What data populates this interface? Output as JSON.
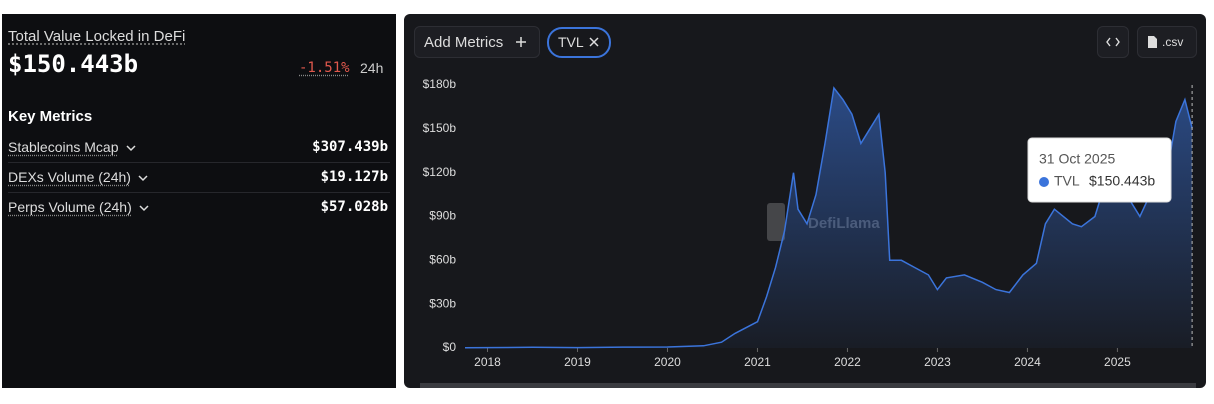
{
  "panel": {
    "title": "Total Value Locked in DeFi",
    "value": "$150.443b",
    "change": "-1.51%",
    "period": "24h",
    "section": "Key Metrics",
    "metrics": [
      {
        "label": "Stablecoins Mcap",
        "value": "$307.439b"
      },
      {
        "label": "DEXs Volume (24h)",
        "value": "$19.127b"
      },
      {
        "label": "Perps Volume (24h)",
        "value": "$57.028b"
      }
    ]
  },
  "toolbar": {
    "add": "Add Metrics",
    "csv": ".csv"
  },
  "chart_data": {
    "type": "area",
    "x": [
      2017.75,
      2018,
      2018.5,
      2019,
      2019.5,
      2020,
      2020.4,
      2020.6,
      2020.75,
      2021,
      2021.1,
      2021.2,
      2021.3,
      2021.4,
      2021.45,
      2021.55,
      2021.65,
      2021.75,
      2021.85,
      2021.95,
      2022.05,
      2022.15,
      2022.25,
      2022.35,
      2022.42,
      2022.47,
      2022.6,
      2022.75,
      2022.9,
      2023,
      2023.1,
      2023.3,
      2023.5,
      2023.65,
      2023.8,
      2023.95,
      2024.1,
      2024.2,
      2024.3,
      2024.5,
      2024.6,
      2024.75,
      2024.9,
      2024.97,
      2025.1,
      2025.25,
      2025.4,
      2025.55,
      2025.65,
      2025.75,
      2025.83
    ],
    "series": [
      {
        "name": "TVL",
        "color": "#3b74db",
        "values": [
          0.2,
          0.3,
          0.5,
          0.3,
          0.6,
          0.7,
          1.5,
          4,
          10,
          18,
          35,
          55,
          80,
          120,
          95,
          85,
          105,
          140,
          178,
          170,
          160,
          140,
          150,
          160,
          120,
          60,
          60,
          55,
          50,
          40,
          48,
          50,
          45,
          40,
          38,
          50,
          58,
          85,
          95,
          85,
          83,
          90,
          120,
          130,
          105,
          90,
          110,
          120,
          155,
          170,
          150.443
        ]
      }
    ],
    "xlim": [
      2017.75,
      2025.84
    ],
    "xticks": [
      2018,
      2019,
      2020,
      2021,
      2022,
      2023,
      2024,
      2025
    ],
    "ylim": [
      0,
      180
    ],
    "yticks": [
      {
        "value": 0,
        "label": "$0"
      },
      {
        "value": 30,
        "label": "$30b"
      },
      {
        "value": 60,
        "label": "$60b"
      },
      {
        "value": 90,
        "label": "$90b"
      },
      {
        "value": 120,
        "label": "$120b"
      },
      {
        "value": 150,
        "label": "$150b"
      },
      {
        "value": 180,
        "label": "$180b"
      }
    ],
    "watermark": "DefiLlama",
    "tooltip": {
      "date": "31 Oct 2025",
      "value": "$150.443b"
    }
  }
}
